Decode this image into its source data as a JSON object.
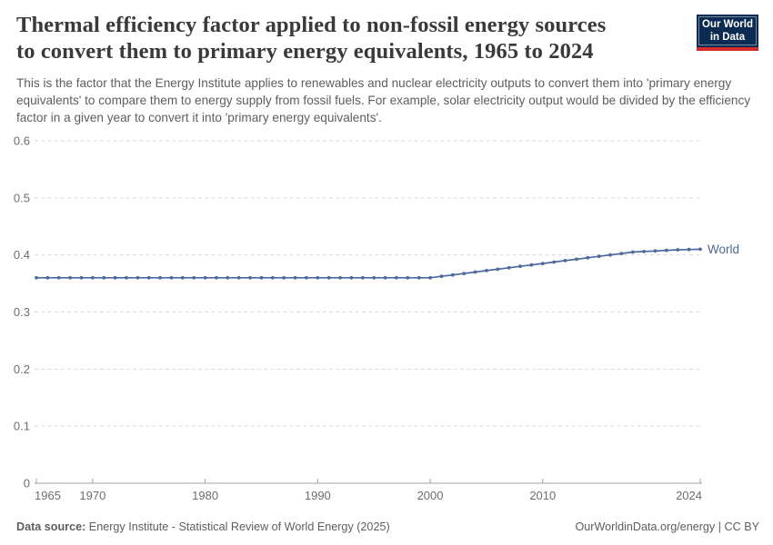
{
  "header": {
    "title_line1": "Thermal efficiency factor applied to non-fossil energy sources",
    "title_line2": "to convert them to primary energy equivalents, 1965 to 2024",
    "subtitle": "This is the factor that the Energy Institute applies to renewables and nuclear electricity outputs to convert them into 'primary energy equivalents' to compare them to energy supply from fossil fuels. For example, solar electricity output would be divided by the efficiency factor in a given year to convert it into 'primary energy equivalents'.",
    "logo_line1": "Our World",
    "logo_line2": "in Data"
  },
  "footer": {
    "datasource_label": "Data source:",
    "datasource_value": " Energy Institute - Statistical Review of World Energy (2025)",
    "right_text": "OurWorldinData.org/energy | CC BY"
  },
  "chart_data": {
    "type": "line",
    "title": "Thermal efficiency factor applied to non-fossil energy sources to convert them to primary energy equivalents, 1965 to 2024",
    "series_label": "World",
    "xlabel": "",
    "ylabel": "",
    "xlim": [
      1965,
      2024
    ],
    "ylim": [
      0,
      0.6
    ],
    "xticks": [
      1965,
      1970,
      1980,
      1990,
      2000,
      2010,
      2024
    ],
    "yticks": [
      0,
      0.1,
      0.2,
      0.3,
      0.4,
      0.5,
      0.6
    ],
    "grid": "dashed-horizontal",
    "legend_position": "end-of-line",
    "x": [
      1965,
      1966,
      1967,
      1968,
      1969,
      1970,
      1971,
      1972,
      1973,
      1974,
      1975,
      1976,
      1977,
      1978,
      1979,
      1980,
      1981,
      1982,
      1983,
      1984,
      1985,
      1986,
      1987,
      1988,
      1989,
      1990,
      1991,
      1992,
      1993,
      1994,
      1995,
      1996,
      1997,
      1998,
      1999,
      2000,
      2001,
      2002,
      2003,
      2004,
      2005,
      2006,
      2007,
      2008,
      2009,
      2010,
      2011,
      2012,
      2013,
      2014,
      2015,
      2016,
      2017,
      2018,
      2019,
      2020,
      2021,
      2022,
      2023,
      2024
    ],
    "values": [
      0.36,
      0.36,
      0.36,
      0.36,
      0.36,
      0.36,
      0.36,
      0.36,
      0.36,
      0.36,
      0.36,
      0.36,
      0.36,
      0.36,
      0.36,
      0.36,
      0.36,
      0.36,
      0.36,
      0.36,
      0.36,
      0.36,
      0.36,
      0.36,
      0.36,
      0.36,
      0.36,
      0.36,
      0.36,
      0.36,
      0.36,
      0.36,
      0.36,
      0.36,
      0.36,
      0.36,
      0.3625,
      0.365,
      0.3675,
      0.37,
      0.3725,
      0.375,
      0.3775,
      0.38,
      0.3825,
      0.385,
      0.3875,
      0.39,
      0.3925,
      0.395,
      0.3975,
      0.4,
      0.4025,
      0.405,
      0.406,
      0.407,
      0.408,
      0.409,
      0.4095,
      0.41
    ],
    "colors": {
      "line": "#4c6a9c",
      "grid": "#dadada",
      "axis": "#a1a1a1",
      "tick_label": "#6e6e6e",
      "logo_bg": "#0c2b52",
      "logo_bar": "#d42b2b"
    }
  }
}
